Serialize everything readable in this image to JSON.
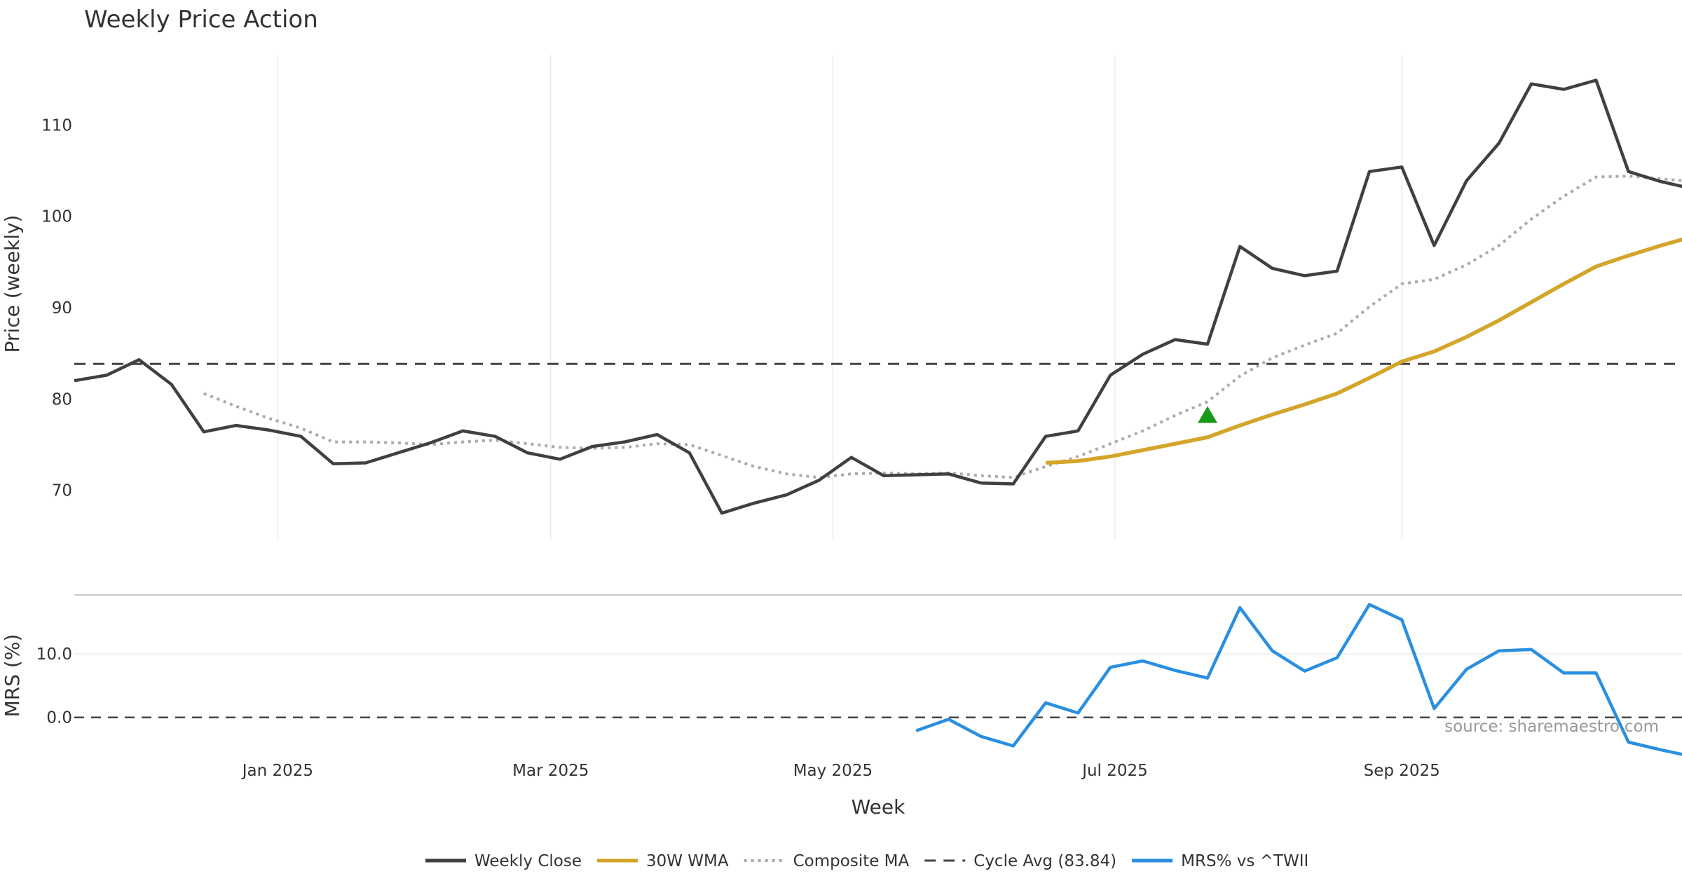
{
  "chart_data": {
    "type": "line",
    "title": "Weekly Price Action",
    "xlabel": "Week",
    "source": "source: sharemaestro.com",
    "x_ticks": [
      {
        "date": "2025-01-01",
        "label": "Jan 2025"
      },
      {
        "date": "2025-03-01",
        "label": "Mar 2025"
      },
      {
        "date": "2025-05-01",
        "label": "May 2025"
      },
      {
        "date": "2025-07-01",
        "label": "Jul 2025"
      },
      {
        "date": "2025-09-01",
        "label": "Sep 2025"
      }
    ],
    "x": [
      "2024-11-18",
      "2024-11-25",
      "2024-12-02",
      "2024-12-09",
      "2024-12-16",
      "2024-12-23",
      "2024-12-30",
      "2025-01-06",
      "2025-01-13",
      "2025-01-20",
      "2025-01-27",
      "2025-02-03",
      "2025-02-10",
      "2025-02-17",
      "2025-02-24",
      "2025-03-03",
      "2025-03-10",
      "2025-03-17",
      "2025-03-24",
      "2025-03-31",
      "2025-04-07",
      "2025-04-14",
      "2025-04-21",
      "2025-04-28",
      "2025-05-05",
      "2025-05-12",
      "2025-05-19",
      "2025-05-26",
      "2025-06-02",
      "2025-06-09",
      "2025-06-16",
      "2025-06-23",
      "2025-06-30",
      "2025-07-07",
      "2025-07-14",
      "2025-07-21",
      "2025-07-28",
      "2025-08-04",
      "2025-08-11",
      "2025-08-18",
      "2025-08-25",
      "2025-09-01",
      "2025-09-08",
      "2025-09-15",
      "2025-09-22",
      "2025-09-29",
      "2025-10-06",
      "2025-10-13",
      "2025-10-20",
      "2025-10-27",
      "2025-11-03"
    ],
    "price_panel": {
      "ylabel": "Price (weekly)",
      "ylim": [
        64.6,
        117.7
      ],
      "yticks": [
        70,
        80,
        90,
        100,
        110
      ],
      "grid": "vertical",
      "cycle_avg": 83.84,
      "marker": {
        "x": "2025-07-21",
        "y": 78.3,
        "shape": "triangle-up",
        "color": "#1a9a1a"
      }
    },
    "mrs_panel": {
      "ylabel": "MRS (%)",
      "ylim": [
        -6.0,
        19.3
      ],
      "yticks": [
        0.0,
        10.0
      ],
      "ytick_labels": [
        "0.0",
        "10.0"
      ],
      "zero_line": 0
    },
    "series": [
      {
        "name": "Weekly Close",
        "panel": "price",
        "color": "#404040",
        "style": "solid",
        "values": [
          82.0,
          82.6,
          84.3,
          81.6,
          76.4,
          77.1,
          76.6,
          75.9,
          72.9,
          73.0,
          74.1,
          75.2,
          76.5,
          75.9,
          74.1,
          73.4,
          74.8,
          75.3,
          76.1,
          74.1,
          67.5,
          68.6,
          69.5,
          71.1,
          73.6,
          71.6,
          71.7,
          71.8,
          70.8,
          70.7,
          75.9,
          76.5,
          82.6,
          84.9,
          86.5,
          86.0,
          96.7,
          94.3,
          93.5,
          94.0,
          104.9,
          105.4,
          96.8,
          103.9,
          108.0,
          114.5,
          113.9,
          114.9,
          104.9,
          103.8,
          103.0
        ]
      },
      {
        "name": "30W WMA",
        "panel": "price",
        "color": "#d4a52a",
        "style": "solid",
        "values": [
          null,
          null,
          null,
          null,
          null,
          null,
          null,
          null,
          null,
          null,
          null,
          null,
          null,
          null,
          null,
          null,
          null,
          null,
          null,
          null,
          null,
          null,
          null,
          null,
          null,
          null,
          null,
          null,
          null,
          null,
          73.0,
          73.2,
          73.7,
          74.4,
          75.1,
          75.8,
          77.1,
          78.3,
          79.4,
          80.6,
          82.3,
          84.1,
          85.2,
          86.8,
          88.6,
          90.6,
          92.6,
          94.5,
          95.7,
          96.8,
          97.8
        ]
      },
      {
        "name": "Composite MA",
        "panel": "price",
        "color": "#aaaaaa",
        "style": "dotted",
        "values": [
          null,
          null,
          null,
          null,
          80.6,
          79.2,
          77.9,
          76.8,
          75.3,
          75.3,
          75.2,
          75.0,
          75.3,
          75.5,
          75.1,
          74.7,
          74.6,
          74.7,
          75.1,
          75.0,
          73.8,
          72.6,
          71.8,
          71.4,
          71.8,
          71.9,
          71.8,
          71.9,
          71.6,
          71.4,
          72.6,
          73.7,
          75.1,
          76.5,
          78.2,
          79.7,
          82.5,
          84.5,
          85.9,
          87.2,
          90.1,
          92.6,
          93.1,
          94.7,
          96.8,
          99.7,
          102.2,
          104.3,
          104.4,
          104.1,
          103.8
        ]
      },
      {
        "name": "Cycle Avg (83.84)",
        "panel": "price",
        "color": "#444444",
        "style": "dashed",
        "constant": 83.84
      },
      {
        "name": "MRS% vs ^TWII",
        "panel": "mrs",
        "color": "#2a8fe0",
        "style": "solid",
        "values": [
          null,
          null,
          null,
          null,
          null,
          null,
          null,
          null,
          null,
          null,
          null,
          null,
          null,
          null,
          null,
          null,
          null,
          null,
          null,
          null,
          null,
          null,
          null,
          null,
          null,
          null,
          -2.1,
          -0.3,
          -3.0,
          -4.5,
          2.3,
          0.7,
          7.9,
          8.9,
          7.4,
          6.2,
          17.3,
          10.5,
          7.3,
          9.4,
          17.8,
          15.4,
          1.4,
          7.6,
          10.5,
          10.7,
          7.0,
          7.0,
          -3.9,
          -5.1,
          -6.2
        ]
      }
    ],
    "legend": {
      "position": "bottom-center"
    }
  }
}
